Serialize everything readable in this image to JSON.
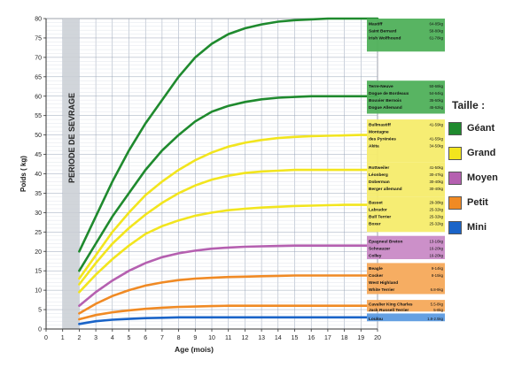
{
  "chart_data": {
    "type": "line",
    "xlabel": "Age (mois)",
    "ylabel": "Poids ( kg)",
    "xlim": [
      0,
      20
    ],
    "ylim": [
      0,
      80
    ],
    "xticks": [
      0,
      1,
      2,
      3,
      4,
      5,
      6,
      7,
      8,
      9,
      10,
      11,
      12,
      13,
      14,
      15,
      16,
      17,
      18,
      19,
      20
    ],
    "yticks": [
      0,
      5,
      10,
      15,
      20,
      25,
      30,
      35,
      40,
      45,
      50,
      55,
      60,
      65,
      70,
      75,
      80
    ],
    "grid": true,
    "band": {
      "label": "PERIODE DE SEVRAGE",
      "x_range": [
        1,
        2
      ]
    },
    "series": [
      {
        "name": "Géant",
        "color": "#1f8a2e",
        "x": [
          2,
          3,
          4,
          5,
          6,
          7,
          8,
          9,
          10,
          11,
          12,
          13,
          14,
          15,
          16,
          17,
          18,
          19,
          20
        ],
        "y": [
          20,
          29,
          38,
          46,
          53,
          59,
          65,
          70,
          73.5,
          76,
          77.5,
          78.5,
          79.2,
          79.6,
          79.8,
          80,
          80,
          80,
          80
        ]
      },
      {
        "name": "Géant",
        "color": "#1f8a2e",
        "x": [
          2,
          3,
          4,
          5,
          6,
          7,
          8,
          9,
          10,
          11,
          12,
          13,
          14,
          15,
          16,
          17,
          18,
          19,
          20
        ],
        "y": [
          15,
          22,
          29,
          35,
          41,
          46,
          50,
          53.5,
          56,
          57.5,
          58.5,
          59.2,
          59.6,
          59.8,
          60,
          60,
          60,
          60,
          60
        ]
      },
      {
        "name": "Grand",
        "color": "#f2e51e",
        "x": [
          2,
          3,
          4,
          5,
          6,
          7,
          8,
          9,
          10,
          11,
          12,
          13,
          14,
          15,
          16,
          17,
          18,
          19,
          20
        ],
        "y": [
          13,
          19,
          25,
          30,
          34.5,
          38,
          41,
          43.5,
          45.5,
          47,
          48,
          48.7,
          49.2,
          49.5,
          49.7,
          49.8,
          49.9,
          50,
          50
        ]
      },
      {
        "name": "Grand",
        "color": "#f2e51e",
        "x": [
          2,
          3,
          4,
          5,
          6,
          7,
          8,
          9,
          10,
          11,
          12,
          13,
          14,
          15,
          16,
          17,
          18,
          19,
          20
        ],
        "y": [
          11.5,
          17,
          22,
          26,
          29.5,
          32.5,
          35,
          37,
          38.5,
          39.5,
          40.2,
          40.6,
          40.8,
          41,
          41,
          41,
          41,
          41,
          41
        ]
      },
      {
        "name": "Grand",
        "color": "#f2e51e",
        "x": [
          2,
          3,
          4,
          5,
          6,
          7,
          8,
          9,
          10,
          11,
          12,
          13,
          14,
          15,
          16,
          17,
          18,
          19,
          20
        ],
        "y": [
          9.5,
          14,
          18,
          21.5,
          24.5,
          26.5,
          28,
          29.2,
          30,
          30.6,
          31,
          31.3,
          31.5,
          31.7,
          31.8,
          31.9,
          32,
          32,
          32
        ]
      },
      {
        "name": "Moyen",
        "color": "#b560b0",
        "x": [
          2,
          3,
          4,
          5,
          6,
          7,
          8,
          9,
          10,
          11,
          12,
          13,
          14,
          15,
          16,
          17,
          18,
          19,
          20
        ],
        "y": [
          6,
          9.5,
          12.5,
          15,
          17,
          18.5,
          19.5,
          20.2,
          20.7,
          21,
          21.2,
          21.3,
          21.4,
          21.5,
          21.5,
          21.5,
          21.5,
          21.5,
          21.5
        ]
      },
      {
        "name": "Petit",
        "color": "#f08a24",
        "x": [
          2,
          3,
          4,
          5,
          6,
          7,
          8,
          9,
          10,
          11,
          12,
          13,
          14,
          15,
          16,
          17,
          18,
          19,
          20
        ],
        "y": [
          4,
          6.5,
          8.5,
          10,
          11.2,
          12,
          12.6,
          13,
          13.2,
          13.4,
          13.5,
          13.6,
          13.7,
          13.8,
          13.8,
          13.8,
          13.8,
          13.8,
          13.8
        ]
      },
      {
        "name": "Petit",
        "color": "#f08a24",
        "x": [
          2,
          3,
          4,
          5,
          6,
          7,
          8,
          9,
          10,
          11,
          12,
          13,
          14,
          15,
          16,
          17,
          18,
          19,
          20
        ],
        "y": [
          2.5,
          3.6,
          4.3,
          4.8,
          5.2,
          5.5,
          5.7,
          5.8,
          5.9,
          6,
          6,
          6,
          6,
          6,
          6,
          6,
          6,
          6,
          6
        ]
      },
      {
        "name": "Mini",
        "color": "#1a64c8",
        "x": [
          2,
          3,
          4,
          5,
          6,
          7,
          8,
          9,
          10,
          11,
          12,
          13,
          14,
          15,
          16,
          17,
          18,
          19,
          20
        ],
        "y": [
          1.3,
          2,
          2.4,
          2.6,
          2.8,
          2.9,
          3,
          3,
          3,
          3,
          3,
          3,
          3,
          3,
          3,
          3,
          3,
          3,
          3
        ]
      }
    ],
    "label_boxes": [
      {
        "color": "#4fb05a",
        "y_top": 80,
        "y_bottom": 71.5,
        "rows": [
          [
            "Mastiff",
            "64-85kg"
          ],
          [
            "Saint Bernard",
            "58-80kg"
          ],
          [
            "Irish Wolfhound",
            "61-78kg"
          ]
        ]
      },
      {
        "color": "#4fb05a",
        "y_top": 64,
        "y_bottom": 55.5,
        "rows": [
          [
            "Terre-Neuve",
            "50-68kg"
          ],
          [
            "Dogue de Bordeaux",
            "54-64kg"
          ],
          [
            "Bouvier Bernois",
            "35-60kg"
          ],
          [
            "Dogue Allemand",
            "45-62kg"
          ]
        ]
      },
      {
        "color": "#f5ec6c",
        "y_top": 54,
        "y_bottom": 43,
        "rows": [
          [
            "Bullmastiff",
            "41-59kg"
          ],
          [
            "Montagne",
            ""
          ],
          [
            "des Pyrénées",
            "41-55kg"
          ],
          [
            "Akita",
            "34-50kg"
          ]
        ]
      },
      {
        "color": "#f5ec6c",
        "y_top": 43,
        "y_bottom": 34,
        "rows": [
          [
            "Rottweiler",
            "41-50kg"
          ],
          [
            "Léonberg",
            "30-47kg"
          ],
          [
            "Doberman",
            "30-40kg"
          ],
          [
            "Berger allemand",
            "30-40kg"
          ]
        ]
      },
      {
        "color": "#f5ec6c",
        "y_top": 34,
        "y_bottom": 25,
        "rows": [
          [
            "Basset",
            "29-38kg"
          ],
          [
            "Labrador",
            "25-32kg"
          ],
          [
            "Bull Terrier",
            "25-32kg"
          ],
          [
            "Boxer",
            "25-32kg"
          ]
        ]
      },
      {
        "color": "#c98ac6",
        "y_top": 24,
        "y_bottom": 18,
        "rows": [
          [
            "Epagneul Breton",
            "13-16kg"
          ],
          [
            "Schnauzer",
            "16-20kg"
          ],
          [
            "Colley",
            "16-20kg"
          ]
        ]
      },
      {
        "color": "#f5a95a",
        "y_top": 17,
        "y_bottom": 9,
        "rows": [
          [
            "Beagle",
            "9-14kg"
          ],
          [
            "Cocker",
            "8-15kg"
          ],
          [
            "West Highland",
            ""
          ],
          [
            "White Terrier",
            "6.8-9kg"
          ]
        ]
      },
      {
        "color": "#f5a95a",
        "y_top": 7.5,
        "y_bottom": 4.5,
        "rows": [
          [
            "Cavalier King Charles",
            "5.5-8kg"
          ],
          [
            "Jack Russell Terrier",
            "5-8kg"
          ]
        ]
      },
      {
        "color": "#5d9be0",
        "y_top": 4,
        "y_bottom": 2,
        "rows": [
          [
            "Loulou",
            "1.8-2.5kg"
          ]
        ]
      }
    ]
  },
  "legend": {
    "title": "Taille :",
    "items": [
      {
        "label": "Géant",
        "color": "#1f8a2e"
      },
      {
        "label": "Grand",
        "color": "#f2e51e"
      },
      {
        "label": "Moyen",
        "color": "#b560b0"
      },
      {
        "label": "Petit",
        "color": "#f08a24"
      },
      {
        "label": "Mini",
        "color": "#1a64c8"
      }
    ]
  }
}
